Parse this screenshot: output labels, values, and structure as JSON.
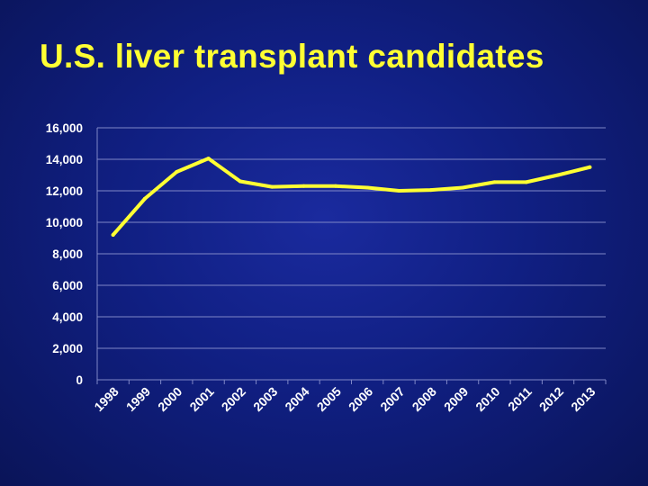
{
  "slide": {
    "title": "U.S. liver transplant candidates"
  },
  "colors": {
    "background": "#101f82",
    "title": "#ffff33",
    "line": "#ffff33",
    "gridline": "#7f87c7",
    "text": "#ffffff"
  },
  "chart_data": {
    "type": "line",
    "title": "",
    "xlabel": "",
    "ylabel": "",
    "grid": true,
    "legend": "none",
    "ylim": [
      0,
      16000
    ],
    "yticks": [
      "0",
      "2,000",
      "4,000",
      "6,000",
      "8,000",
      "10,000",
      "12,000",
      "14,000",
      "16,000"
    ],
    "yticks_values": [
      0,
      2000,
      4000,
      6000,
      8000,
      10000,
      12000,
      14000,
      16000
    ],
    "categories": [
      "1998",
      "1999",
      "2000",
      "2001",
      "2002",
      "2003",
      "2004",
      "2005",
      "2006",
      "2007",
      "2008",
      "2009",
      "2010",
      "2011",
      "2012",
      "2013"
    ],
    "series": [
      {
        "values": [
          9200,
          11500,
          13200,
          14050,
          12600,
          12250,
          12300,
          12300,
          12200,
          12000,
          12050,
          12200,
          12550,
          12550,
          13000,
          13500
        ]
      }
    ]
  }
}
